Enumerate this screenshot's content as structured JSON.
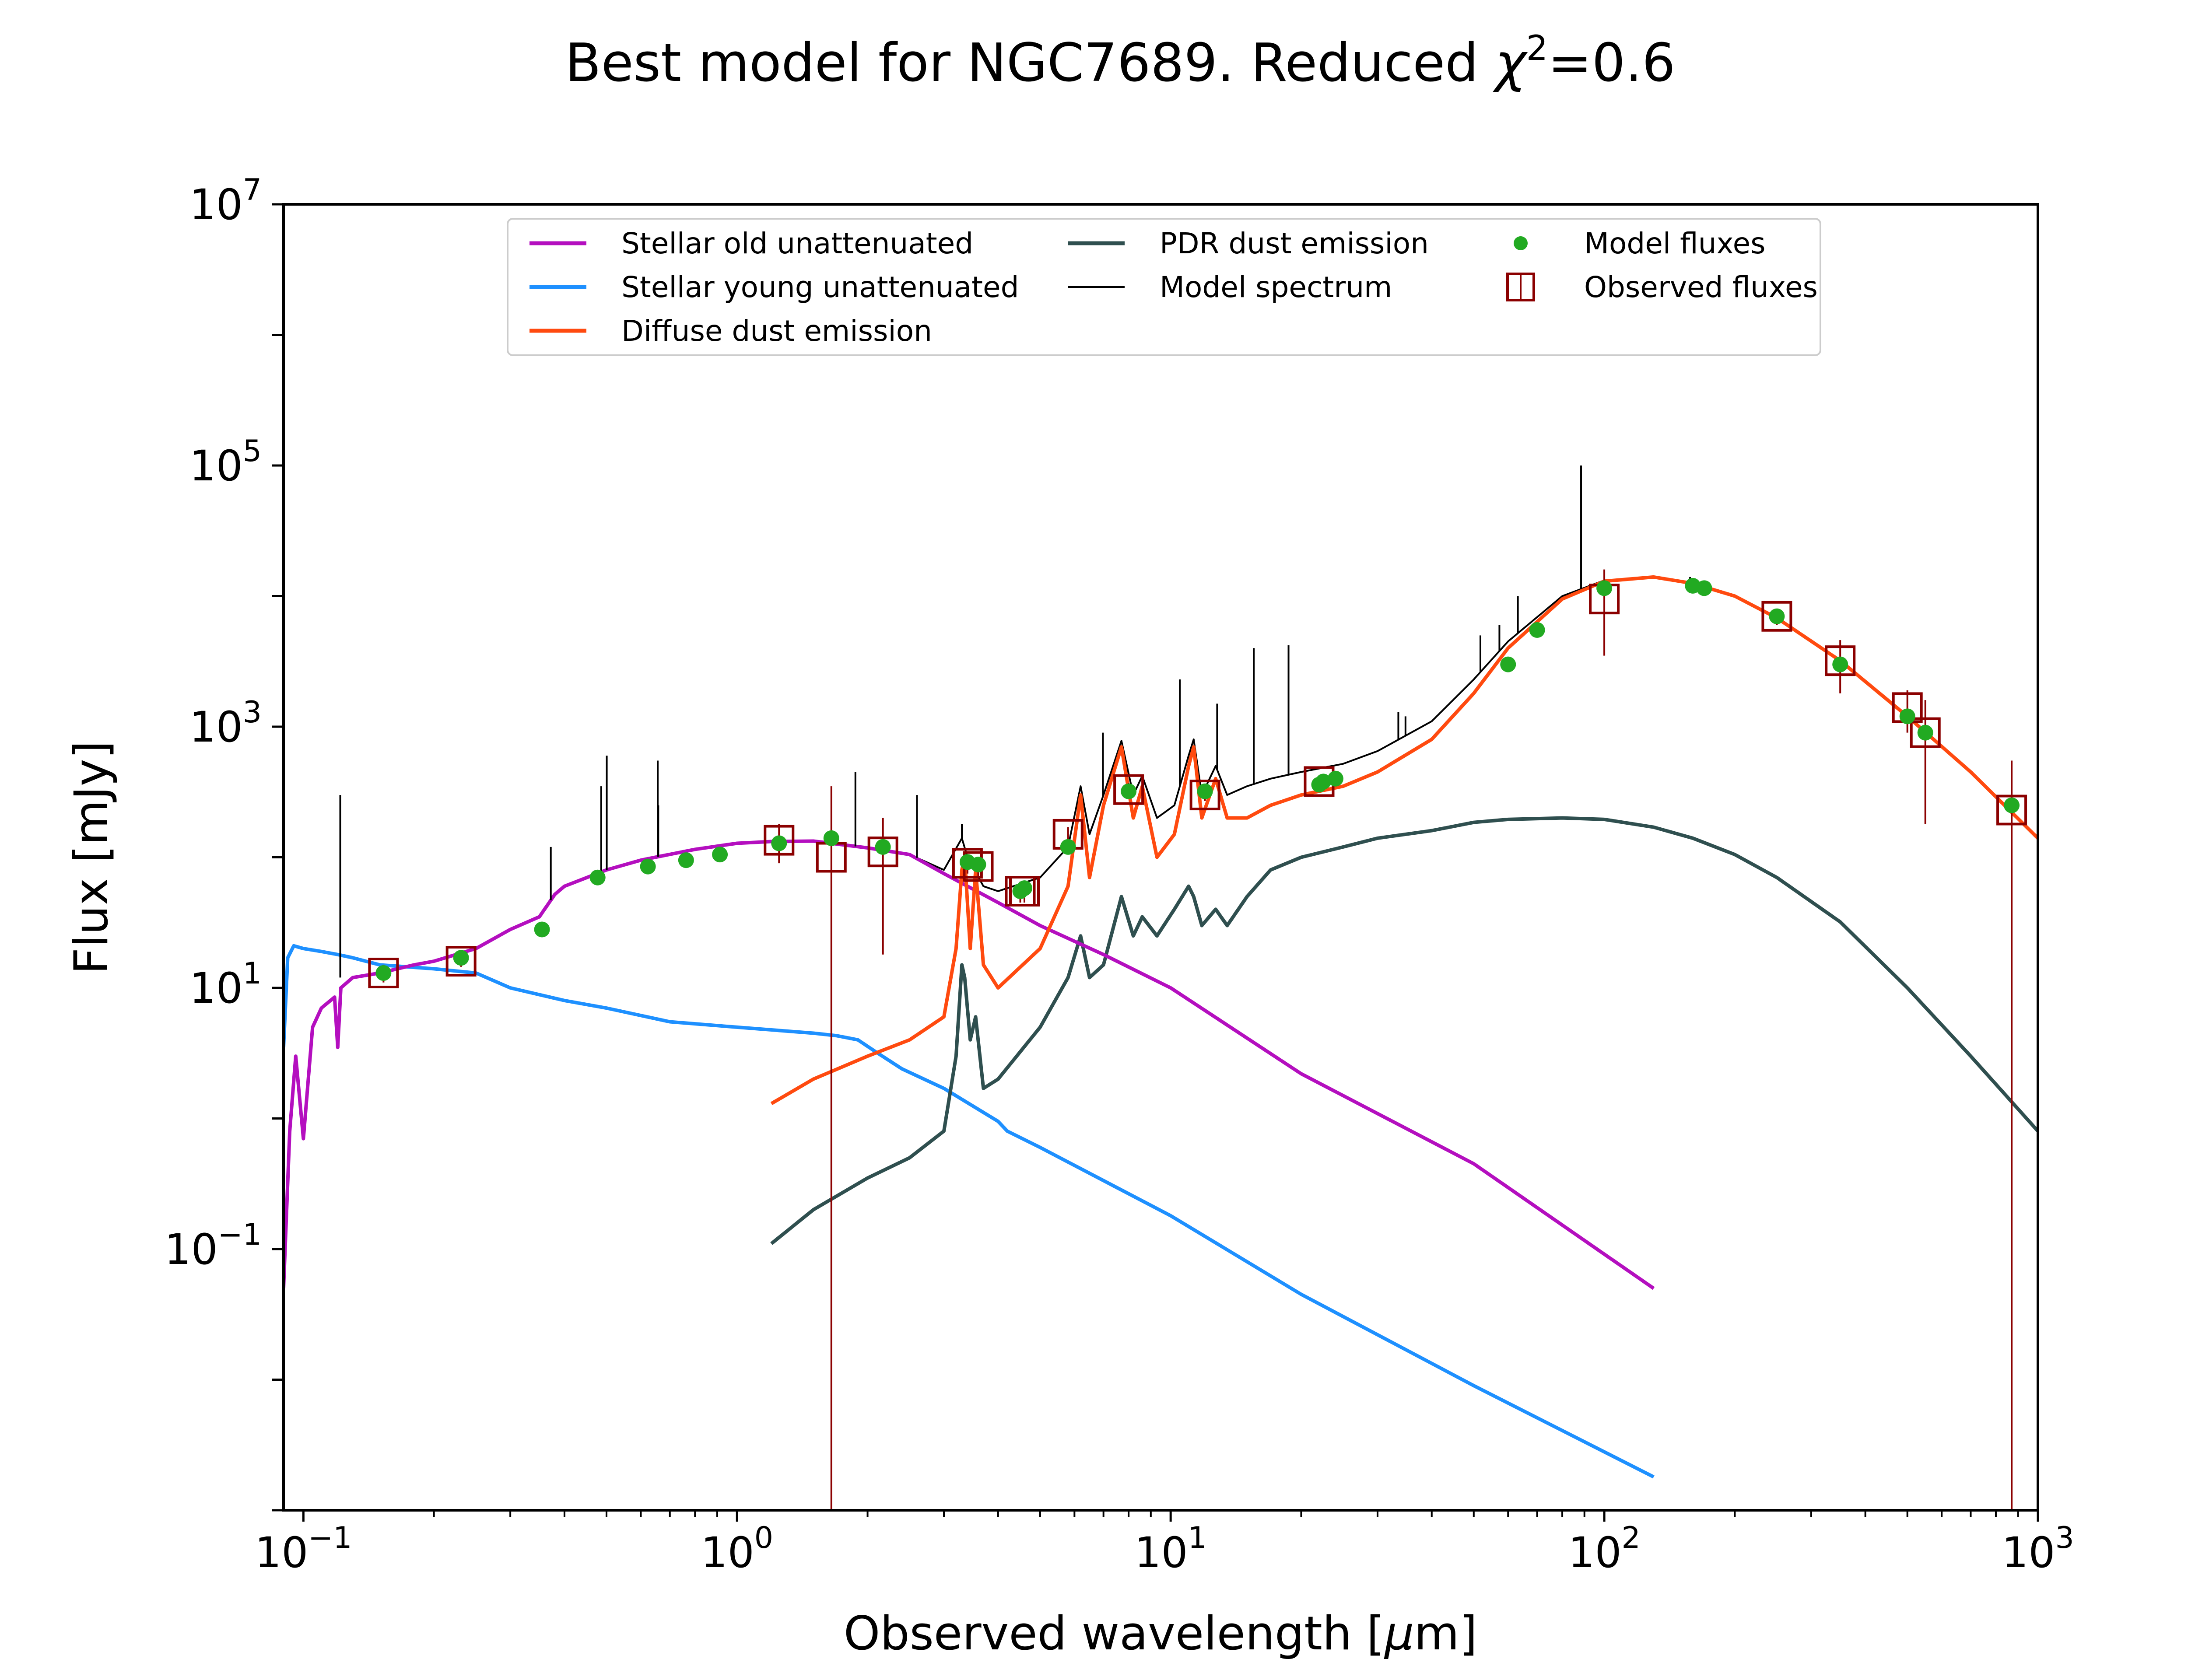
{
  "chart_data": {
    "type": "line",
    "title": "Best model for NGC7689. Reduced χ²=0.6",
    "title_parts": {
      "prefix": "Best model for NGC7689. Reduced ",
      "chi": "χ",
      "sup": "2",
      "suffix": "=0.6"
    },
    "xlabel": "Observed wavelength [μm]",
    "xlabel_parts": {
      "prefix": "Observed wavelength [",
      "mu": "μ",
      "suffix": "m]"
    },
    "ylabel": "Flux [mJy]",
    "xscale": "log",
    "yscale": "log",
    "xlim": [
      0.09,
      1000
    ],
    "ylim": [
      0.001,
      10000000
    ],
    "x_ticks": [
      {
        "base": "10",
        "exp": "−1",
        "value": 0.1
      },
      {
        "base": "10",
        "exp": "0",
        "value": 1
      },
      {
        "base": "10",
        "exp": "1",
        "value": 10
      },
      {
        "base": "10",
        "exp": "2",
        "value": 100
      },
      {
        "base": "10",
        "exp": "3",
        "value": 1000
      }
    ],
    "y_ticks": [
      {
        "base": "10",
        "exp": "−1",
        "value": 0.1
      },
      {
        "base": "10",
        "exp": "1",
        "value": 10
      },
      {
        "base": "10",
        "exp": "3",
        "value": 1000
      },
      {
        "base": "10",
        "exp": "5",
        "value": 100000
      },
      {
        "base": "10",
        "exp": "7",
        "value": 10000000
      }
    ],
    "grid": false,
    "legend_position": "top-center",
    "legend": [
      {
        "label": "Stellar old unattenuated",
        "kind": "line",
        "color": "#b40fbf"
      },
      {
        "label": "Stellar young unattenuated",
        "kind": "line",
        "color": "#1e90ff"
      },
      {
        "label": "Diffuse dust emission",
        "kind": "line",
        "color": "#ff4a0f"
      },
      {
        "label": "PDR dust emission",
        "kind": "line",
        "color": "#2f4f4f"
      },
      {
        "label": "Model spectrum",
        "kind": "thinline",
        "color": "#000000"
      },
      {
        "label": "Model fluxes",
        "kind": "dot",
        "color": "#22aa22"
      },
      {
        "label": "Observed fluxes",
        "kind": "errsquare",
        "color": "#8b0000"
      }
    ],
    "series": [
      {
        "name": "Stellar old unattenuated",
        "color": "#b40fbf",
        "x": [
          0.09,
          0.093,
          0.096,
          0.1,
          0.105,
          0.11,
          0.118,
          0.12,
          0.122,
          0.13,
          0.15,
          0.18,
          0.2,
          0.25,
          0.3,
          0.35,
          0.38,
          0.4,
          0.5,
          0.6,
          0.8,
          1.0,
          1.2,
          1.5,
          2.0,
          2.5,
          3.0,
          4.0,
          5.0,
          7.0,
          10.0,
          20.0,
          50.0,
          130.0
        ],
        "y": [
          0.05,
          0.8,
          3.0,
          0.7,
          5.0,
          7.0,
          8.5,
          3.5,
          10.0,
          12.0,
          13.0,
          15.0,
          16.0,
          20.0,
          28.0,
          35.0,
          52.0,
          60.0,
          80.0,
          95.0,
          115.0,
          128.0,
          132.0,
          133.0,
          118.0,
          105.0,
          75.0,
          45.0,
          30.0,
          18.0,
          10.0,
          2.2,
          0.45,
          0.05
        ]
      },
      {
        "name": "Stellar young unattenuated",
        "color": "#1e90ff",
        "x": [
          0.09,
          0.092,
          0.095,
          0.1,
          0.11,
          0.12,
          0.13,
          0.15,
          0.2,
          0.25,
          0.3,
          0.4,
          0.5,
          0.7,
          1.0,
          1.5,
          1.7,
          1.9,
          2.1,
          2.4,
          3.0,
          4.0,
          4.2,
          5.0,
          10.0,
          20.0,
          50.0,
          130.0
        ],
        "y": [
          3.5,
          17.0,
          21.0,
          20.0,
          19.0,
          18.0,
          17.0,
          15.0,
          14.0,
          13.0,
          10.0,
          8.0,
          7.0,
          5.5,
          5.0,
          4.5,
          4.3,
          4.0,
          3.2,
          2.4,
          1.7,
          0.95,
          0.8,
          0.6,
          0.18,
          0.045,
          0.009,
          0.0018
        ]
      },
      {
        "name": "Diffuse dust emission",
        "color": "#ff4a0f",
        "x": [
          1.2,
          1.5,
          2.0,
          2.5,
          3.0,
          3.2,
          3.3,
          3.35,
          3.45,
          3.55,
          3.7,
          4.0,
          5.0,
          5.8,
          6.2,
          6.5,
          7.0,
          7.7,
          8.2,
          8.6,
          9.3,
          10.2,
          11.0,
          11.3,
          11.8,
          12.7,
          13.5,
          15.0,
          17.0,
          20.0,
          25.0,
          30.0,
          40.0,
          50.0,
          60.0,
          80.0,
          100.0,
          130.0,
          160.0,
          200.0,
          250.0,
          350.0,
          500.0,
          700.0,
          1000.0
        ],
        "y": [
          1.3,
          2.0,
          3.0,
          4.0,
          6.0,
          20.0,
          80.0,
          100.0,
          20.0,
          80.0,
          15.0,
          10.0,
          20.0,
          60.0,
          300.0,
          70.0,
          250.0,
          700.0,
          200.0,
          350.0,
          100.0,
          150.0,
          500.0,
          700.0,
          200.0,
          400.0,
          200.0,
          200.0,
          250.0,
          300.0,
          350.0,
          450.0,
          800.0,
          1800.0,
          4000.0,
          9500.0,
          13000.0,
          14000.0,
          12500.0,
          10000.0,
          6800.0,
          3200.0,
          1200.0,
          450.0,
          140.0
        ]
      },
      {
        "name": "PDR dust emission",
        "color": "#2f4f4f",
        "x": [
          1.2,
          1.5,
          2.0,
          2.5,
          3.0,
          3.2,
          3.3,
          3.35,
          3.45,
          3.55,
          3.7,
          4.0,
          5.0,
          5.8,
          6.2,
          6.5,
          7.0,
          7.7,
          8.2,
          8.6,
          9.3,
          10.2,
          11.0,
          11.3,
          11.8,
          12.7,
          13.5,
          15.0,
          17.0,
          20.0,
          25.0,
          30.0,
          40.0,
          50.0,
          60.0,
          80.0,
          100.0,
          130.0,
          160.0,
          200.0,
          250.0,
          350.0,
          500.0,
          700.0,
          1000.0
        ],
        "y": [
          0.11,
          0.2,
          0.35,
          0.5,
          0.8,
          3.0,
          15.0,
          12.0,
          4.0,
          6.0,
          1.7,
          2.0,
          5.0,
          12.0,
          25.0,
          12.0,
          15.0,
          50.0,
          25.0,
          35.0,
          25.0,
          40.0,
          60.0,
          50.0,
          30.0,
          40.0,
          30.0,
          50.0,
          80.0,
          100.0,
          120.0,
          140.0,
          160.0,
          185.0,
          195.0,
          200.0,
          195.0,
          170.0,
          140.0,
          105.0,
          70.0,
          32.0,
          10.0,
          3.0,
          0.8
        ]
      },
      {
        "name": "Model spectrum",
        "color": "#000000",
        "x": [
          0.13,
          0.15,
          0.18,
          0.2,
          0.25,
          0.3,
          0.35,
          0.38,
          0.4,
          0.5,
          0.6,
          0.8,
          1.0,
          1.2,
          1.5,
          2.0,
          2.5,
          3.0,
          3.3,
          3.4,
          3.7,
          4.0,
          5.0,
          5.8,
          6.2,
          6.5,
          7.0,
          7.7,
          8.2,
          8.6,
          9.3,
          10.2,
          11.0,
          11.3,
          11.8,
          12.7,
          13.5,
          15.0,
          17.0,
          20.0,
          25.0,
          30.0,
          40.0,
          50.0,
          60.0,
          80.0,
          100.0,
          130.0,
          160.0,
          200.0,
          250.0,
          350.0,
          500.0,
          700.0,
          1000.0
        ],
        "y": [
          12.0,
          13.0,
          15.0,
          16.0,
          20.0,
          28.0,
          35.0,
          52.0,
          60.0,
          80.0,
          95.0,
          115.0,
          128.0,
          132.0,
          133.0,
          118.0,
          105.0,
          80.0,
          140.0,
          100.0,
          60.0,
          55.0,
          70.0,
          120.0,
          350.0,
          150.0,
          300.0,
          780.0,
          300.0,
          420.0,
          200.0,
          250.0,
          600.0,
          800.0,
          300.0,
          500.0,
          300.0,
          350.0,
          400.0,
          450.0,
          520.0,
          650.0,
          1100.0,
          2300.0,
          4500.0,
          10000.0,
          13200.0,
          14000.0,
          12500.0,
          10000.0,
          6800.0,
          3200.0,
          1200.0,
          450.0,
          140.0
        ]
      },
      {
        "name": "Model spectrum emission lines",
        "color": "#000000",
        "x": [
          0.1216,
          0.372,
          0.4861,
          0.5007,
          0.6563,
          0.6583,
          1.875,
          2.6,
          3.3,
          6.98,
          10.5,
          12.8,
          15.55,
          18.7,
          33.5,
          34.8,
          51.8,
          57.3,
          63.2,
          88.4,
          157.7
        ],
        "y": [
          300.0,
          120.0,
          350.0,
          600.0,
          550.0,
          250.0,
          450.0,
          300.0,
          180.0,
          900.0,
          2300.0,
          1500.0,
          4000.0,
          4200.0,
          1300.0,
          1200.0,
          5000.0,
          6000.0,
          10000.0,
          100000.0,
          14000.0
        ]
      }
    ],
    "model_fluxes": {
      "x": [
        0.153,
        0.231,
        0.355,
        0.477,
        0.623,
        0.763,
        0.913,
        1.25,
        1.65,
        2.17,
        3.4,
        3.6,
        4.5,
        4.6,
        5.8,
        8.0,
        12.0,
        22.0,
        22.5,
        24.0,
        60.0,
        70.0,
        100.0,
        160.0,
        170.0,
        250.0,
        350.0,
        500.0,
        550.0,
        870.0
      ],
      "y": [
        13.0,
        17.0,
        28.0,
        70.0,
        85.0,
        95.0,
        105.0,
        128.0,
        140.0,
        120.0,
        92.0,
        88.0,
        55.0,
        58.0,
        120.0,
        320.0,
        320.0,
        360.0,
        380.0,
        400.0,
        3000.0,
        5500.0,
        11500.0,
        12000.0,
        11500.0,
        7000.0,
        3000.0,
        1200.0,
        900.0,
        250.0
      ]
    },
    "observed_fluxes": {
      "x": [
        0.153,
        0.231,
        1.25,
        1.65,
        2.17,
        3.4,
        3.6,
        4.5,
        4.6,
        5.8,
        8.0,
        12.0,
        22.0,
        100.0,
        250.0,
        350.0,
        500.0,
        550.0,
        870.0
      ],
      "y": [
        13.0,
        16.0,
        135.0,
        100.0,
        110.0,
        90.0,
        85.0,
        55.0,
        55.0,
        150.0,
        330.0,
        300.0,
        380.0,
        9500.0,
        7000.0,
        3200.0,
        1400.0,
        900.0,
        230.0
      ],
      "err_lo": [
        11.0,
        14.5,
        90.0,
        0.001,
        18.0,
        75.0,
        70.0,
        45.0,
        45.0,
        130.0,
        290.0,
        270.0,
        350.0,
        3500.0,
        6000.0,
        1800.0,
        900.0,
        180.0,
        0.001
      ],
      "err_hi": [
        15.0,
        17.5,
        180.0,
        350.0,
        200.0,
        105.0,
        100.0,
        65.0,
        65.0,
        170.0,
        370.0,
        330.0,
        410.0,
        16000.0,
        8000.0,
        4600.0,
        1900.0,
        1600.0,
        550.0
      ],
      "color": "#8b0000"
    }
  }
}
